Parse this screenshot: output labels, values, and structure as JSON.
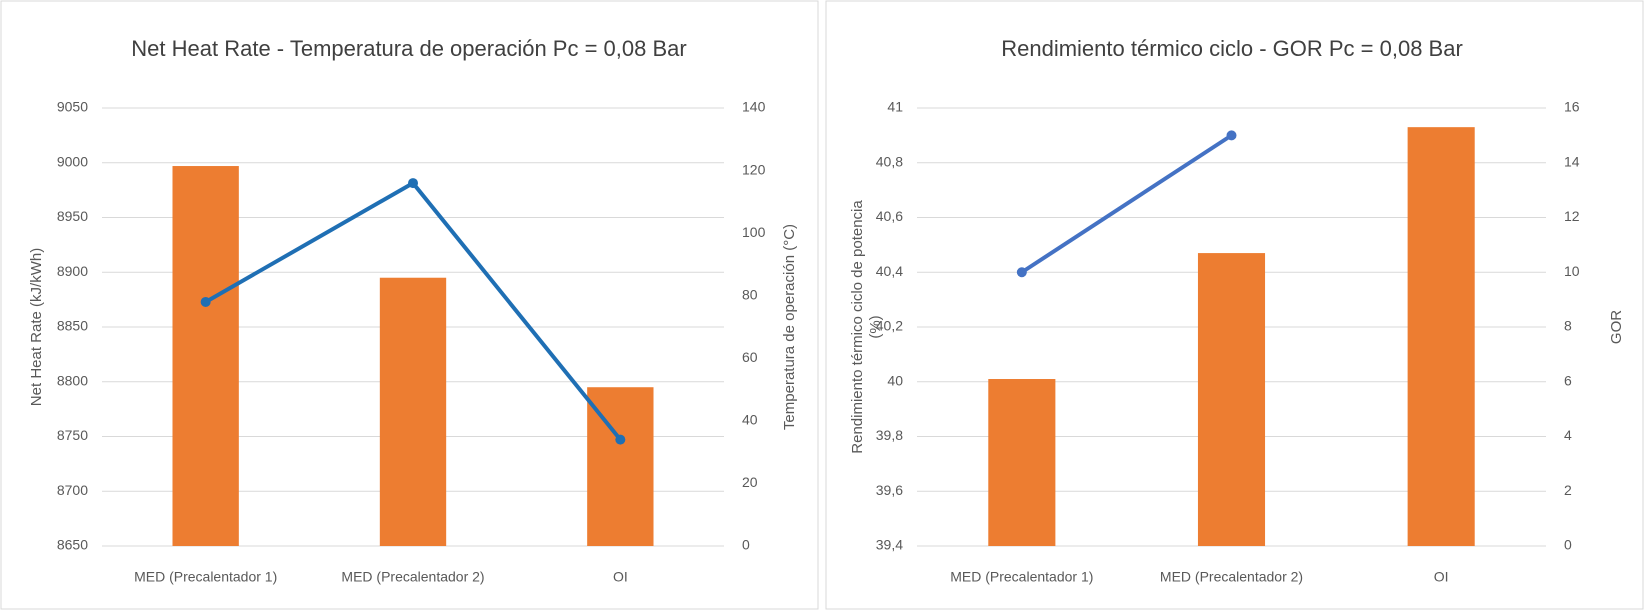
{
  "chart_data": [
    {
      "type": "bar-line",
      "title": "Net Heat Rate - Temperatura de operación Pc = 0,08 Bar",
      "ylabel": [
        "Net Heat Rate (kJ/kWh)"
      ],
      "y2label": "Temperatura de operación (°C)",
      "categories": [
        "MED (Precalentador 1)",
        "MED (Precalentador 2)",
        "OI"
      ],
      "series": [
        {
          "type": "bar",
          "color": "#ed7d31",
          "values": [
            8997,
            8895,
            8795
          ]
        },
        {
          "type": "line",
          "color": "#1f6fb4",
          "axis": "y2",
          "values": [
            78,
            116,
            34
          ]
        }
      ],
      "ylim": [
        8650,
        9050
      ],
      "yticks": [
        8650,
        8700,
        8750,
        8800,
        8850,
        8900,
        8950,
        9000,
        9050
      ],
      "y2lim": [
        0,
        140
      ],
      "y2ticks": [
        0,
        20,
        40,
        60,
        80,
        100,
        120,
        140
      ],
      "grid": true
    },
    {
      "type": "bar-line",
      "title": "Rendimiento térmico ciclo - GOR Pc = 0,08 Bar",
      "ylabel": [
        "Rendimiento térmico ciclo de potencia",
        "(%)"
      ],
      "y2label": "GOR",
      "categories": [
        "MED (Precalentador 1)",
        "MED (Precalentador 2)",
        "OI"
      ],
      "series": [
        {
          "type": "bar",
          "color": "#ed7d31",
          "values": [
            40.01,
            40.47,
            40.93
          ]
        },
        {
          "type": "line",
          "color": "#4472c4",
          "axis": "y2",
          "values": [
            10,
            15,
            null
          ]
        }
      ],
      "ylim": [
        39.4,
        41
      ],
      "yticks": [
        {
          "value": 39.4,
          "label": "39,4"
        },
        {
          "value": 39.6,
          "label": "39,6"
        },
        {
          "value": 39.8,
          "label": "39,8"
        },
        40,
        {
          "value": 40.2,
          "label": "40,2"
        },
        {
          "value": 40.4,
          "label": "40,4"
        },
        {
          "value": 40.6,
          "label": "40,6"
        },
        {
          "value": 40.8,
          "label": "40,8"
        },
        41
      ],
      "y2lim": [
        0,
        16
      ],
      "y2ticks": [
        0,
        2,
        4,
        6,
        8,
        10,
        12,
        14,
        16
      ],
      "grid": true
    }
  ]
}
